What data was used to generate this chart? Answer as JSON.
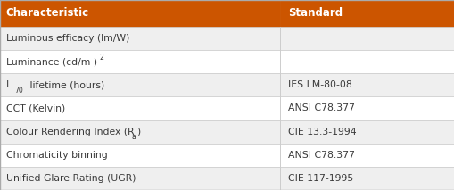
{
  "header": [
    "Characteristic",
    "Standard"
  ],
  "rows": [
    [
      "Luminous efficacy (lm/W)",
      ""
    ],
    [
      "Luminance (cd/m )",
      ""
    ],
    [
      "lifetime (hours)",
      "IES LM-80-08"
    ],
    [
      "CCT (Kelvin)",
      "ANSI C78.377"
    ],
    [
      "Colour Rendering Index (R )",
      "CIE 13.3-1994"
    ],
    [
      "Chromaticity binning",
      "ANSI C78.377"
    ],
    [
      "Unified Glare Rating (UGR)",
      "CIE 117-1995"
    ]
  ],
  "header_bg": "#CC5500",
  "header_text_color": "#FFFFFF",
  "row_bg_odd": "#EFEFEF",
  "row_bg_even": "#FFFFFF",
  "text_color": "#3A3A3A",
  "col_split": 0.615,
  "header_fontsize": 8.5,
  "row_fontsize": 7.8,
  "figsize": [
    5.1,
    2.13
  ],
  "dpi": 100
}
